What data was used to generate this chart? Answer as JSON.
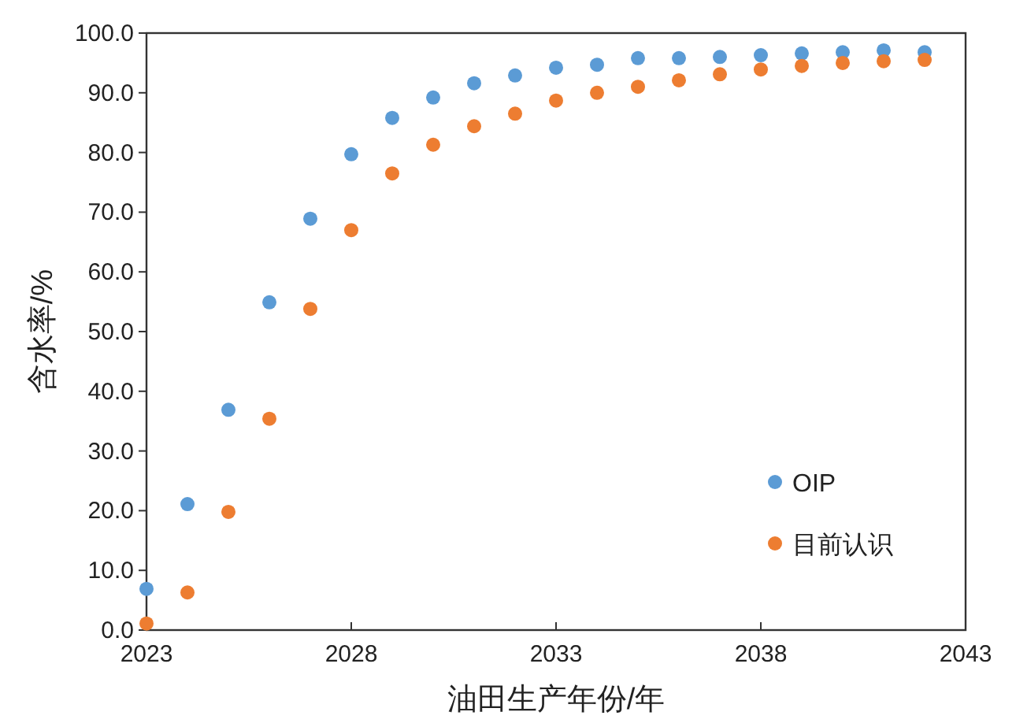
{
  "chart_data": {
    "type": "scatter",
    "xlabel": "油田生产年份/年",
    "ylabel": "含水率/%",
    "x": [
      2023,
      2024,
      2025,
      2026,
      2027,
      2028,
      2029,
      2030,
      2031,
      2032,
      2033,
      2034,
      2035,
      2036,
      2037,
      2038,
      2039,
      2040,
      2041,
      2042
    ],
    "series": [
      {
        "name": "OIP",
        "color": "#5b9bd5",
        "values": [
          6.9,
          21.1,
          36.9,
          54.9,
          68.9,
          79.7,
          85.8,
          89.2,
          91.6,
          92.9,
          94.2,
          94.7,
          95.8,
          95.8,
          96.0,
          96.3,
          96.6,
          96.8,
          97.1,
          96.8
        ]
      },
      {
        "name": "目前认识",
        "color": "#ed7d31",
        "values": [
          1.1,
          6.3,
          19.8,
          35.4,
          53.8,
          67.0,
          76.5,
          81.3,
          84.4,
          86.5,
          88.7,
          90.0,
          91.0,
          92.1,
          93.1,
          93.9,
          94.5,
          95.0,
          95.3,
          95.5
        ]
      }
    ],
    "xlim": [
      2023,
      2043
    ],
    "xticks": [
      2023,
      2028,
      2033,
      2038,
      2043
    ],
    "ylim": [
      0,
      100
    ],
    "yticks": [
      {
        "value": 0,
        "label": "0.0"
      },
      {
        "value": 10,
        "label": "10.0"
      },
      {
        "value": 20,
        "label": "20.0"
      },
      {
        "value": 30,
        "label": "30.0"
      },
      {
        "value": 40,
        "label": "40.0"
      },
      {
        "value": 50,
        "label": "50.0"
      },
      {
        "value": 60,
        "label": "60.0"
      },
      {
        "value": 70,
        "label": "70.0"
      },
      {
        "value": 80,
        "label": "80.0"
      },
      {
        "value": 90,
        "label": "90.0"
      },
      {
        "value": 100,
        "label": "100.0"
      }
    ],
    "marker": "circle",
    "legend": "bottom right",
    "grid": false
  }
}
